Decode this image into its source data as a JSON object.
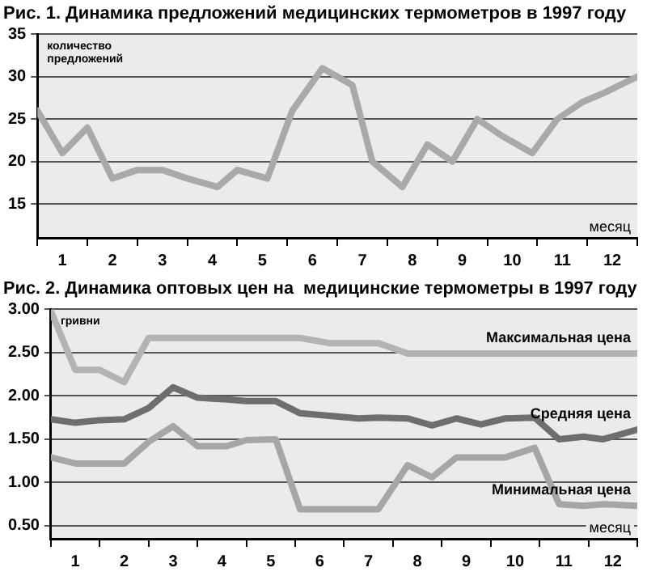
{
  "chart_data": [
    {
      "type": "line",
      "title": "Рис. 1. Динамика предложений медицинских термометров в 1997 году",
      "xlabel": "месяц",
      "ylabel": "количество предложений",
      "x": [
        0,
        0.5,
        1,
        1.5,
        2,
        2.5,
        3,
        3.6,
        4,
        4.6,
        5.1,
        5.7,
        6.3,
        6.7,
        7.3,
        7.8,
        8.3,
        8.8,
        9.3,
        9.9,
        10.4,
        10.9,
        11.3,
        12
      ],
      "values": [
        26,
        21,
        24,
        18,
        19,
        19,
        18,
        17,
        19,
        18,
        26,
        31,
        29,
        20,
        17,
        22,
        20,
        25,
        23,
        21,
        25,
        27,
        28,
        30
      ],
      "color": "#a9a9a9",
      "xlim": [
        0,
        12
      ],
      "xticks": [
        {
          "value": 0,
          "label": null
        },
        {
          "value": 0.5,
          "label": "1"
        },
        {
          "value": 1,
          "label": null
        },
        {
          "value": 1.5,
          "label": "2"
        },
        {
          "value": 2,
          "label": null
        },
        {
          "value": 2.5,
          "label": "3"
        },
        {
          "value": 3,
          "label": null
        },
        {
          "value": 3.5,
          "label": "4"
        },
        {
          "value": 4,
          "label": null
        },
        {
          "value": 4.5,
          "label": "5"
        },
        {
          "value": 5,
          "label": null
        },
        {
          "value": 5.5,
          "label": "6"
        },
        {
          "value": 6,
          "label": null
        },
        {
          "value": 6.5,
          "label": "7"
        },
        {
          "value": 7,
          "label": null
        },
        {
          "value": 7.5,
          "label": "8"
        },
        {
          "value": 8,
          "label": null
        },
        {
          "value": 8.5,
          "label": "9"
        },
        {
          "value": 9,
          "label": null
        },
        {
          "value": 9.5,
          "label": "10"
        },
        {
          "value": 10,
          "label": null
        },
        {
          "value": 10.5,
          "label": "11"
        },
        {
          "value": 11,
          "label": null
        },
        {
          "value": 11.5,
          "label": "12"
        },
        {
          "value": 12,
          "label": null
        }
      ],
      "ylim": [
        11,
        35
      ],
      "yticks": [
        15,
        20,
        25,
        30,
        35
      ],
      "grid": "y",
      "legend": false,
      "marker": "none"
    },
    {
      "type": "line",
      "title": "Рис. 2. Динамика оптовых цен на  медицинские термометры в 1997 году",
      "xlabel": "месяц",
      "ylabel": "гривни",
      "x": [
        0,
        0.5,
        1,
        1.5,
        2,
        2.5,
        3,
        3.6,
        4,
        4.6,
        5.1,
        5.7,
        6.3,
        6.7,
        7.3,
        7.8,
        8.3,
        8.8,
        9.3,
        9.9,
        10.4,
        10.9,
        11.3,
        12
      ],
      "series": [
        {
          "name": "Максимальная цена",
          "color": "#b3b3b3",
          "values": [
            2.98,
            2.3,
            2.3,
            2.16,
            2.67,
            2.67,
            2.67,
            2.67,
            2.67,
            2.67,
            2.67,
            2.61,
            2.61,
            2.61,
            2.49,
            2.49,
            2.49,
            2.49,
            2.49,
            2.49,
            2.49,
            2.49,
            2.49,
            2.49
          ]
        },
        {
          "name": "Средняя цена",
          "color": "#6e6e6e",
          "values": [
            1.73,
            1.69,
            1.72,
            1.73,
            1.86,
            2.1,
            1.98,
            1.96,
            1.94,
            1.94,
            1.8,
            1.77,
            1.74,
            1.75,
            1.74,
            1.66,
            1.74,
            1.67,
            1.74,
            1.75,
            1.5,
            1.53,
            1.5,
            1.61
          ]
        },
        {
          "name": "Минимальная цена",
          "color": "#a6a6a6",
          "values": [
            1.29,
            1.22,
            1.22,
            1.22,
            1.47,
            1.65,
            1.42,
            1.42,
            1.49,
            1.5,
            0.69,
            0.69,
            0.69,
            0.69,
            1.2,
            1.06,
            1.29,
            1.29,
            1.29,
            1.4,
            0.75,
            0.73,
            0.75,
            0.73
          ]
        }
      ],
      "xlim": [
        0,
        12
      ],
      "xticks": [
        {
          "value": 0,
          "label": null
        },
        {
          "value": 0.5,
          "label": "1"
        },
        {
          "value": 1,
          "label": null
        },
        {
          "value": 1.5,
          "label": "2"
        },
        {
          "value": 2,
          "label": null
        },
        {
          "value": 2.5,
          "label": "3"
        },
        {
          "value": 3,
          "label": null
        },
        {
          "value": 3.5,
          "label": "4"
        },
        {
          "value": 4,
          "label": null
        },
        {
          "value": 4.5,
          "label": "5"
        },
        {
          "value": 5,
          "label": null
        },
        {
          "value": 5.5,
          "label": "6"
        },
        {
          "value": 6,
          "label": null
        },
        {
          "value": 6.5,
          "label": "7"
        },
        {
          "value": 7,
          "label": null
        },
        {
          "value": 7.5,
          "label": "8"
        },
        {
          "value": 8,
          "label": null
        },
        {
          "value": 8.5,
          "label": "9"
        },
        {
          "value": 9,
          "label": null
        },
        {
          "value": 9.5,
          "label": "10"
        },
        {
          "value": 10,
          "label": null
        },
        {
          "value": 10.5,
          "label": "11"
        },
        {
          "value": 11,
          "label": null
        },
        {
          "value": 11.5,
          "label": "12"
        },
        {
          "value": 12,
          "label": null
        }
      ],
      "ylim": [
        0.35,
        3.0
      ],
      "yticks": [
        {
          "value": 0.5,
          "label": "0.50"
        },
        {
          "value": 1,
          "label": "1.00"
        },
        {
          "value": 1.5,
          "label": "1.50"
        },
        {
          "value": 2,
          "label": "2.00"
        },
        {
          "value": 2.5,
          "label": "2.50"
        },
        {
          "value": 3,
          "label": "3.00"
        }
      ],
      "grid": "y",
      "legend": false,
      "marker": "none"
    }
  ]
}
